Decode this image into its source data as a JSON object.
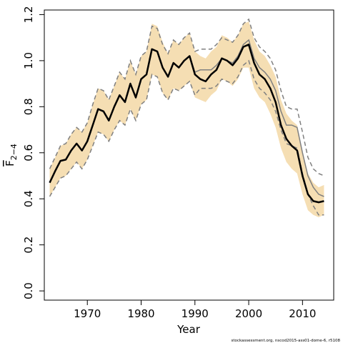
{
  "chart_data": {
    "type": "line",
    "xlabel": "Year",
    "ylabel": {
      "main": "F",
      "sub": "2−4"
    },
    "xlim": [
      1962,
      2015.8
    ],
    "ylim": [
      -0.04,
      1.22
    ],
    "xticks": [
      1970,
      1980,
      1990,
      2000,
      2010
    ],
    "yticks": [
      0.0,
      0.2,
      0.4,
      0.6,
      0.8,
      1.0,
      1.2
    ],
    "ytick_labels": [
      "0.0",
      "0.2",
      "0.4",
      "0.6",
      "0.8",
      "1.0",
      "1.2"
    ],
    "grid": false,
    "credit": "stockassessment.org, nscod2015-ass01-dome-6, r5108",
    "colors": {
      "band": "#f5deb3",
      "estimate": "#000000",
      "previous": "#808080",
      "previous_ci": "#808080"
    },
    "x": [
      1963,
      1964,
      1965,
      1966,
      1967,
      1968,
      1969,
      1970,
      1971,
      1972,
      1973,
      1974,
      1975,
      1976,
      1977,
      1978,
      1979,
      1980,
      1981,
      1982,
      1983,
      1984,
      1985,
      1986,
      1987,
      1988,
      1989,
      1990,
      1991,
      1992,
      1993,
      1994,
      1995,
      1996,
      1997,
      1998,
      1999,
      2000,
      2001,
      2002,
      2003,
      2004,
      2005,
      2006,
      2007,
      2008,
      2009,
      2010,
      2011,
      2012,
      2013,
      2014
    ],
    "series": [
      {
        "role": "estimate",
        "values": [
          0.47,
          0.52,
          0.565,
          0.57,
          0.61,
          0.64,
          0.61,
          0.65,
          0.72,
          0.79,
          0.78,
          0.74,
          0.8,
          0.85,
          0.82,
          0.9,
          0.84,
          0.92,
          0.94,
          1.05,
          1.04,
          0.97,
          0.93,
          0.99,
          0.97,
          1.0,
          1.02,
          0.94,
          0.92,
          0.91,
          0.94,
          0.96,
          1.01,
          1.0,
          0.98,
          1.01,
          1.06,
          1.07,
          0.99,
          0.94,
          0.92,
          0.88,
          0.82,
          0.72,
          0.66,
          0.63,
          0.61,
          0.5,
          0.42,
          0.39,
          0.385,
          0.39
        ],
        "lower": [
          0.41,
          0.45,
          0.49,
          0.5,
          0.53,
          0.56,
          0.53,
          0.57,
          0.63,
          0.69,
          0.68,
          0.65,
          0.7,
          0.74,
          0.72,
          0.79,
          0.74,
          0.81,
          0.83,
          0.94,
          0.93,
          0.86,
          0.83,
          0.88,
          0.87,
          0.89,
          0.91,
          0.84,
          0.83,
          0.82,
          0.85,
          0.87,
          0.92,
          0.91,
          0.89,
          0.92,
          0.97,
          0.97,
          0.88,
          0.84,
          0.82,
          0.77,
          0.71,
          0.62,
          0.56,
          0.53,
          0.51,
          0.42,
          0.35,
          0.33,
          0.32,
          0.33
        ],
        "upper": [
          0.53,
          0.58,
          0.63,
          0.64,
          0.68,
          0.71,
          0.69,
          0.73,
          0.81,
          0.88,
          0.87,
          0.83,
          0.89,
          0.95,
          0.92,
          1.0,
          0.94,
          1.02,
          1.04,
          1.16,
          1.15,
          1.08,
          1.03,
          1.09,
          1.07,
          1.1,
          1.12,
          1.04,
          1.02,
          1.01,
          1.04,
          1.06,
          1.11,
          1.1,
          1.08,
          1.11,
          1.16,
          1.17,
          1.09,
          1.04,
          1.02,
          0.98,
          0.93,
          0.83,
          0.77,
          0.74,
          0.72,
          0.6,
          0.51,
          0.47,
          0.45,
          0.46
        ]
      },
      {
        "role": "previous",
        "values": [
          0.47,
          0.52,
          0.565,
          0.57,
          0.61,
          0.64,
          0.61,
          0.65,
          0.72,
          0.79,
          0.78,
          0.74,
          0.8,
          0.85,
          0.82,
          0.9,
          0.84,
          0.92,
          0.94,
          1.05,
          1.04,
          0.97,
          0.93,
          0.99,
          0.97,
          1.0,
          1.02,
          0.95,
          0.96,
          0.96,
          0.96,
          0.98,
          1.01,
          1.0,
          0.99,
          1.02,
          1.07,
          1.09,
          1.01,
          0.97,
          0.95,
          0.92,
          0.87,
          0.78,
          0.72,
          0.72,
          0.71,
          0.6,
          0.5,
          0.45,
          0.42,
          0.41
        ],
        "lower": [
          0.41,
          0.45,
          0.49,
          0.5,
          0.53,
          0.56,
          0.53,
          0.57,
          0.63,
          0.69,
          0.68,
          0.65,
          0.7,
          0.74,
          0.72,
          0.79,
          0.74,
          0.81,
          0.83,
          0.94,
          0.93,
          0.86,
          0.83,
          0.88,
          0.87,
          0.89,
          0.91,
          0.85,
          0.88,
          0.88,
          0.88,
          0.89,
          0.92,
          0.91,
          0.9,
          0.93,
          0.98,
          1.0,
          0.92,
          0.88,
          0.86,
          0.83,
          0.78,
          0.7,
          0.64,
          0.63,
          0.62,
          0.51,
          0.42,
          0.37,
          0.33,
          0.33
        ],
        "upper": [
          0.53,
          0.58,
          0.63,
          0.64,
          0.68,
          0.71,
          0.69,
          0.73,
          0.81,
          0.88,
          0.87,
          0.83,
          0.89,
          0.95,
          0.92,
          1.0,
          0.94,
          1.02,
          1.04,
          1.15,
          1.14,
          1.07,
          1.03,
          1.09,
          1.07,
          1.1,
          1.12,
          1.04,
          1.05,
          1.05,
          1.05,
          1.07,
          1.1,
          1.09,
          1.08,
          1.11,
          1.16,
          1.18,
          1.1,
          1.06,
          1.04,
          1.01,
          0.96,
          0.87,
          0.8,
          0.79,
          0.79,
          0.69,
          0.58,
          0.53,
          0.51,
          0.5
        ]
      }
    ]
  }
}
